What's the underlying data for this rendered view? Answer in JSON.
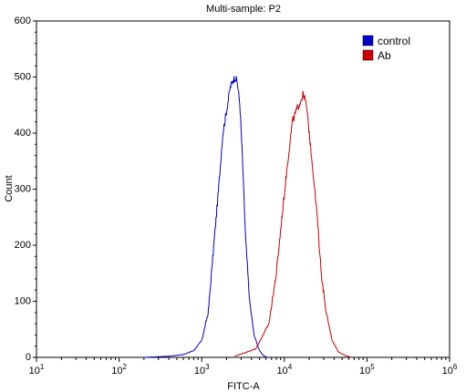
{
  "chart_data": {
    "type": "line",
    "title": "Multi-sample: P2",
    "xlabel": "FITC-A",
    "ylabel": "Count",
    "xscale": "log",
    "xlim": [
      10,
      1000000
    ],
    "ylim": [
      0,
      600
    ],
    "x_ticks": [
      {
        "value": 10,
        "base": "10",
        "exp": "1"
      },
      {
        "value": 100,
        "base": "10",
        "exp": "2"
      },
      {
        "value": 1000,
        "base": "10",
        "exp": "3"
      },
      {
        "value": 10000,
        "base": "10",
        "exp": "4"
      },
      {
        "value": 100000,
        "base": "10",
        "exp": "5"
      },
      {
        "value": 1000000,
        "base": "10",
        "exp": "6"
      }
    ],
    "y_ticks": [
      "0",
      "100",
      "200",
      "300",
      "400",
      "500",
      "600"
    ],
    "legend_position": "top-right",
    "series": [
      {
        "name": "control",
        "color": "#0000cc",
        "x": [
          200,
          400,
          600,
          800,
          1000,
          1200,
          1400,
          1600,
          1800,
          2000,
          2200,
          2400,
          2550,
          2700,
          2900,
          3100,
          3400,
          3800,
          4300,
          5000,
          5600,
          6200
        ],
        "y": [
          0,
          2,
          5,
          12,
          30,
          80,
          200,
          300,
          400,
          440,
          480,
          495,
          500,
          490,
          450,
          360,
          210,
          100,
          40,
          12,
          3,
          0
        ]
      },
      {
        "name": "Ab",
        "color": "#cc0000",
        "x": [
          2500,
          4500,
          6500,
          8000,
          9500,
          11000,
          12500,
          14000,
          15500,
          17000,
          18500,
          20000,
          22000,
          25000,
          28000,
          32000,
          38000,
          45000,
          55000,
          65000
        ],
        "y": [
          2,
          15,
          60,
          150,
          260,
          350,
          420,
          440,
          455,
          470,
          450,
          400,
          340,
          250,
          150,
          80,
          30,
          10,
          3,
          0
        ]
      }
    ]
  }
}
